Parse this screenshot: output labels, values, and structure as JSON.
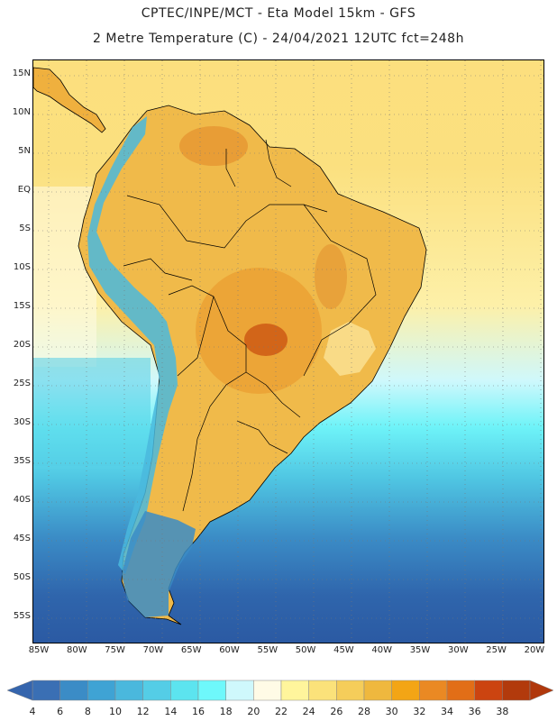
{
  "header": {
    "line1": "CPTEC/INPE/MCT -  Eta Model 15km - GFS",
    "line2": "2 Metre Temperature (C) - 24/04/2021 12UTC fct=248h"
  },
  "map": {
    "lat_labels": [
      "15N",
      "10N",
      "5N",
      "EQ",
      "5S",
      "10S",
      "15S",
      "20S",
      "25S",
      "30S",
      "35S",
      "40S",
      "45S",
      "50S",
      "55S"
    ],
    "lon_labels": [
      "85W",
      "80W",
      "75W",
      "70W",
      "65W",
      "60W",
      "55W",
      "50W",
      "45W",
      "40W",
      "35W",
      "30W",
      "25W",
      "20W"
    ],
    "lat_range": [
      17.5,
      -58.5
    ],
    "lon_range": [
      -87.0,
      -20.0
    ]
  },
  "legend": {
    "values": [
      "4",
      "6",
      "8",
      "10",
      "12",
      "14",
      "16",
      "18",
      "20",
      "22",
      "24",
      "26",
      "28",
      "30",
      "32",
      "34",
      "36",
      "38"
    ],
    "colors": [
      "#3a6fb4",
      "#3b8cc6",
      "#3fa3d4",
      "#4ab8dd",
      "#54cde6",
      "#5ce4ef",
      "#6ef8fb",
      "#cff8fc",
      "#fffbe6",
      "#fff59c",
      "#fbe27a",
      "#f5cd5a",
      "#efb83e",
      "#f3a515",
      "#ea8923",
      "#e26e17",
      "#cc4410",
      "#b23a0c"
    ],
    "low_color": "#3565ad",
    "high_color": "#b0380c"
  }
}
